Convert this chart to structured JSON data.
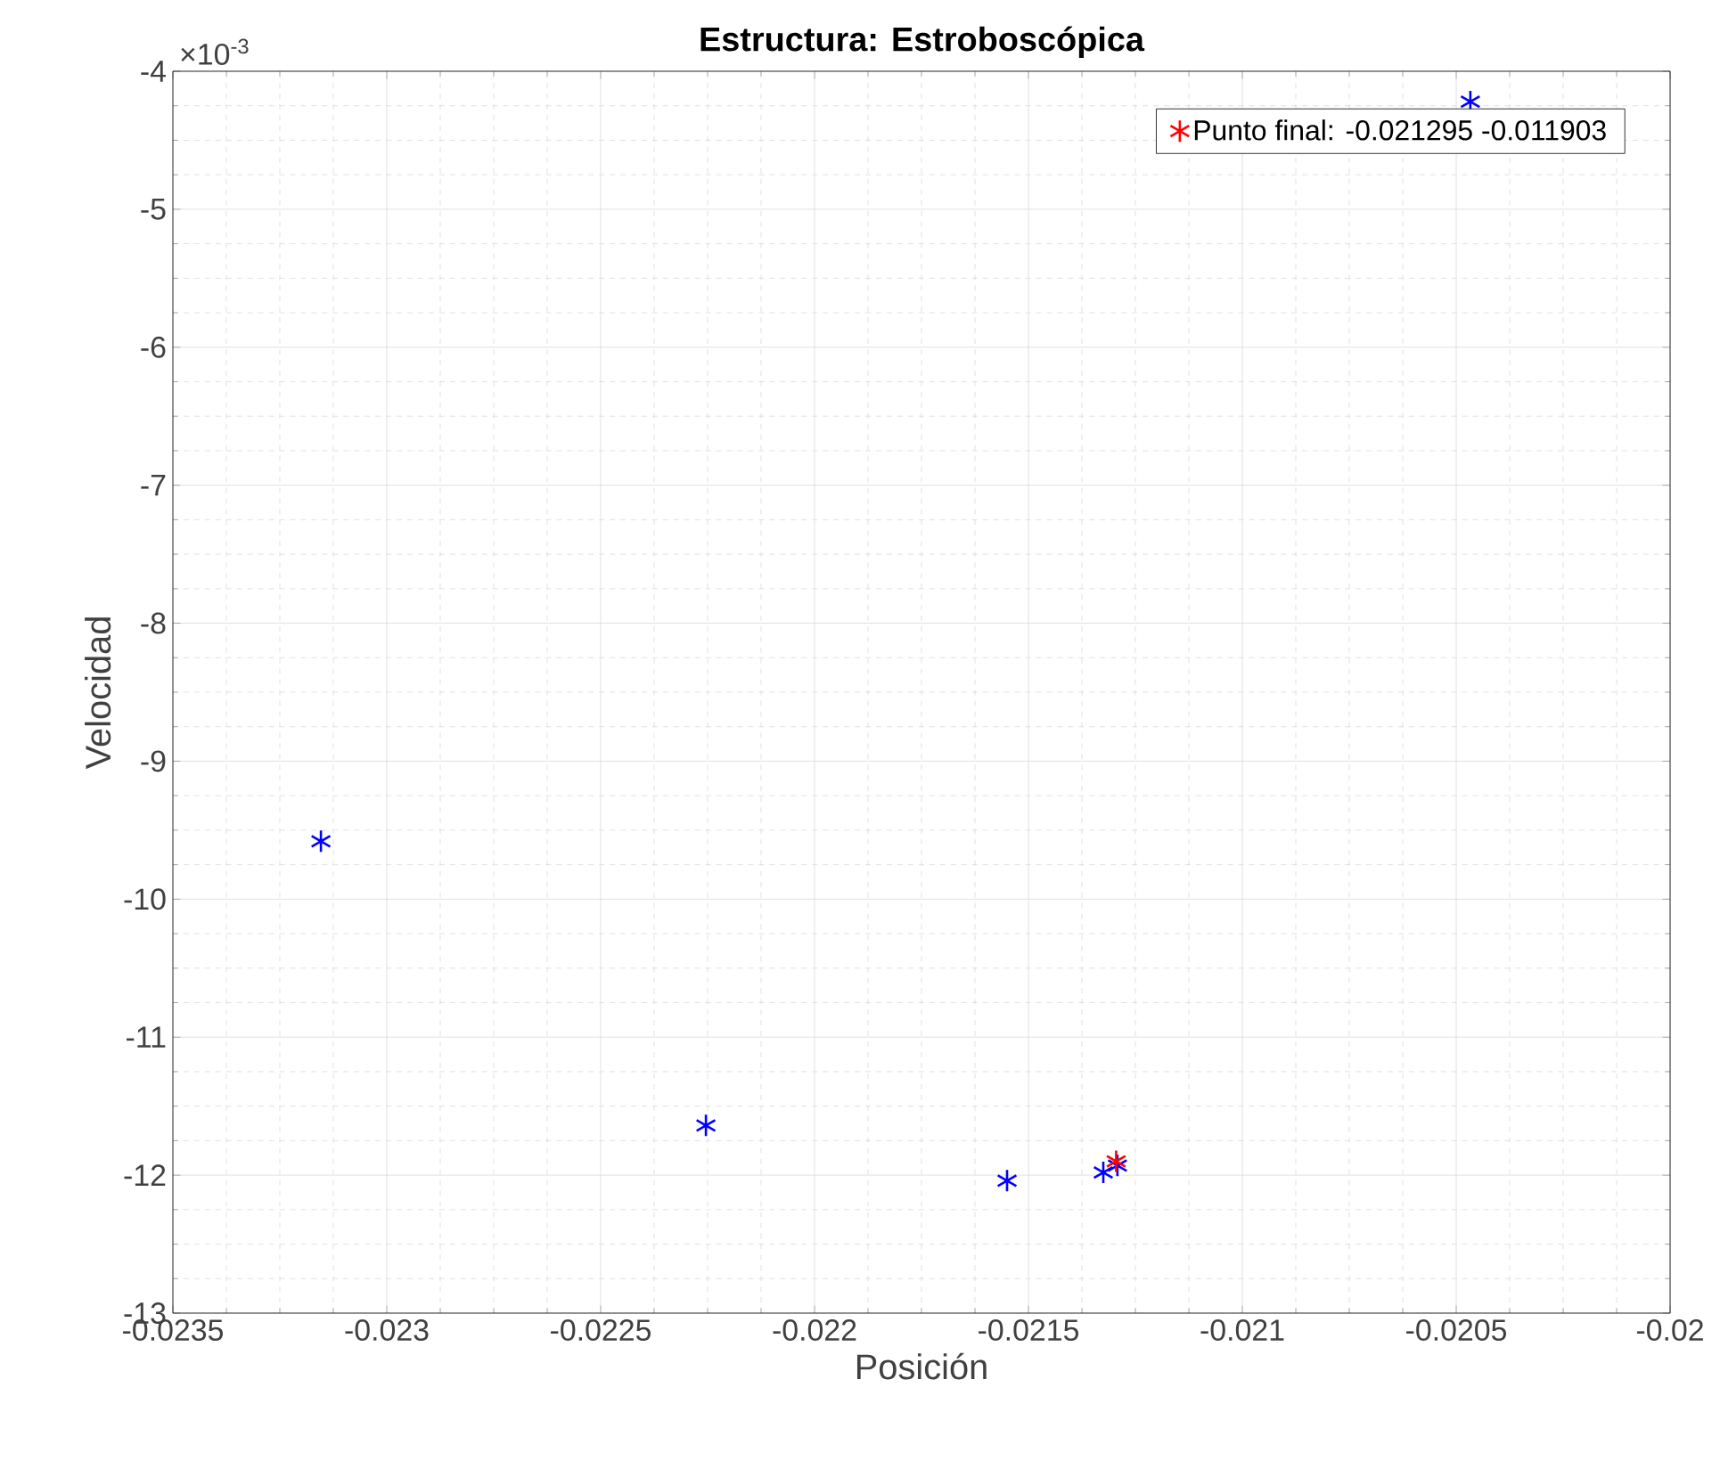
{
  "chart_data": {
    "type": "scatter",
    "title": "Estructura: Estroboscópica",
    "xlabel": "Posición",
    "ylabel": "Velocidad",
    "annotations": [
      "×10$^{-3}$"
    ],
    "series": [
      {
        "color": "#0000ff",
        "x": [
          -0.023154,
          -0.022254,
          -0.02155,
          -0.021325,
          -0.021292,
          -0.020467
        ],
        "values": [
          -9.58,
          -11.64,
          -12.04,
          -11.98,
          -11.93,
          -4.22
        ]
      },
      {
        "name": "Punto final: -0.021295   -0.011903",
        "color": "#ff0000",
        "x": [
          -0.021295
        ],
        "values": [
          -11.9
        ]
      }
    ],
    "xlim": [
      -0.0235,
      -0.02
    ],
    "xticks": [
      -0.0235,
      -0.023,
      -0.0225,
      -0.022,
      -0.0215,
      -0.021,
      -0.0205,
      -0.02
    ],
    "ylim": [
      -13,
      -4
    ],
    "yticks": [
      -13,
      -12,
      -11,
      -10,
      -9,
      -8,
      -7,
      -6,
      -5,
      -4
    ],
    "grid": true,
    "legend": "top right",
    "marker": "cross"
  }
}
